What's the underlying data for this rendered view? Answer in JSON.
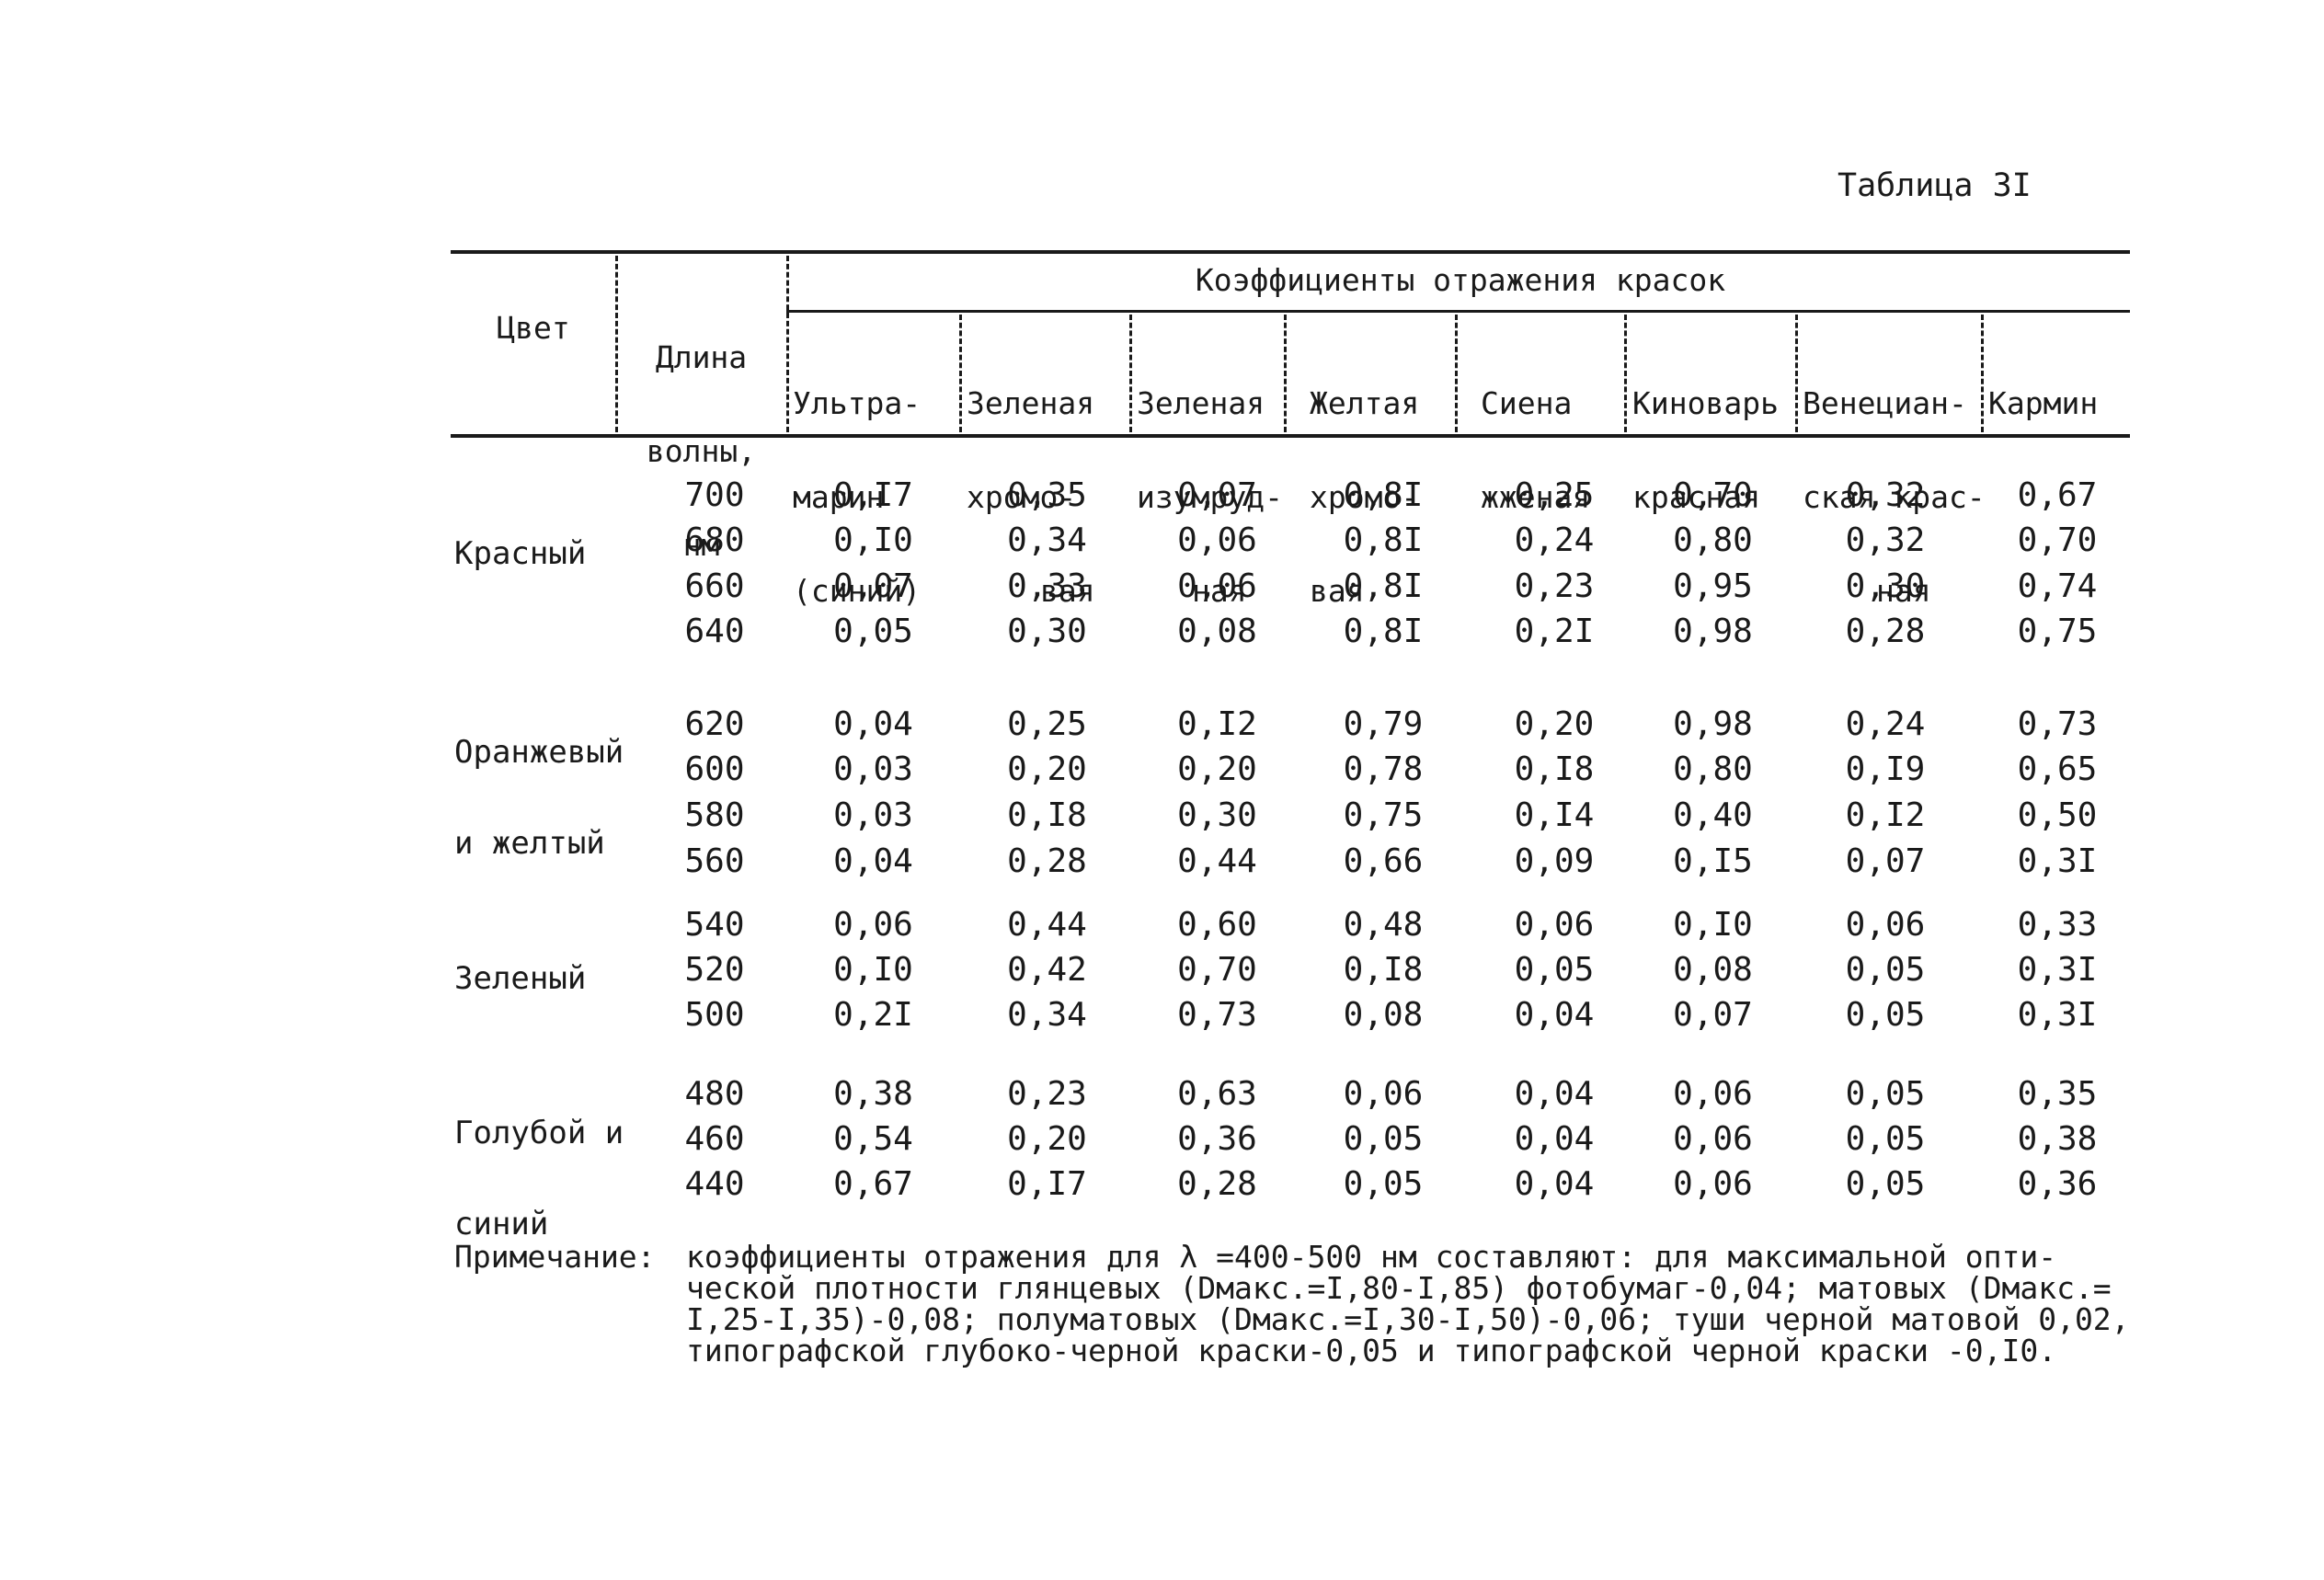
{
  "table_label": "Таблица 3I",
  "header": {
    "color_col": "Цвет",
    "wavelength_col": [
      "Длина",
      "волны,",
      "нм"
    ],
    "group_title": "Коэффициенты отражения красок",
    "paints": [
      [
        "Ультра-",
        "марин",
        "(синий)"
      ],
      [
        "Зеленая",
        "хромо-",
        "вая"
      ],
      [
        "Зеленая",
        "изумруд-",
        "ная"
      ],
      [
        "Желтая",
        "хромо-",
        "вая"
      ],
      [
        "Сиена",
        "жженая",
        ""
      ],
      [
        "Киноварь",
        "красная",
        ""
      ],
      [
        "Венециан-",
        "ская крас-",
        "ная"
      ],
      [
        "Кармин",
        "",
        ""
      ]
    ]
  },
  "groups": [
    {
      "label": [
        "Красный"
      ],
      "rows": [
        {
          "wl": "700",
          "v": [
            "0,I7",
            "0,35",
            "0,07",
            "0,8I",
            "0,25",
            "0,70",
            "0,32",
            "0,67"
          ]
        },
        {
          "wl": "680",
          "v": [
            "0,I0",
            "0,34",
            "0,06",
            "0,8I",
            "0,24",
            "0,80",
            "0,32",
            "0,70"
          ]
        },
        {
          "wl": "660",
          "v": [
            "0,07",
            "0,33",
            "0,06",
            "0,8I",
            "0,23",
            "0,95",
            "0,30",
            "0,74"
          ]
        },
        {
          "wl": "640",
          "v": [
            "0,05",
            "0,30",
            "0,08",
            "0,8I",
            "0,2I",
            "0,98",
            "0,28",
            "0,75"
          ]
        }
      ]
    },
    {
      "label": [
        "Оранжевый",
        "и желтый"
      ],
      "rows": [
        {
          "wl": "620",
          "v": [
            "0,04",
            "0,25",
            "0,I2",
            "0,79",
            "0,20",
            "0,98",
            "0,24",
            "0,73"
          ]
        },
        {
          "wl": "600",
          "v": [
            "0,03",
            "0,20",
            "0,20",
            "0,78",
            "0,I8",
            "0,80",
            "0,I9",
            "0,65"
          ]
        },
        {
          "wl": "580",
          "v": [
            "0,03",
            "0,I8",
            "0,30",
            "0,75",
            "0,I4",
            "0,40",
            "0,I2",
            "0,50"
          ]
        },
        {
          "wl": "560",
          "v": [
            "0,04",
            "0,28",
            "0,44",
            "0,66",
            "0,09",
            "0,I5",
            "0,07",
            "0,3I"
          ]
        }
      ]
    },
    {
      "label": [
        "Зеленый"
      ],
      "rows": [
        {
          "wl": "540",
          "v": [
            "0,06",
            "0,44",
            "0,60",
            "0,48",
            "0,06",
            "0,I0",
            "0,06",
            "0,33"
          ]
        },
        {
          "wl": "520",
          "v": [
            "0,I0",
            "0,42",
            "0,70",
            "0,I8",
            "0,05",
            "0,08",
            "0,05",
            "0,3I"
          ]
        },
        {
          "wl": "500",
          "v": [
            "0,2I",
            "0,34",
            "0,73",
            "0,08",
            "0,04",
            "0,07",
            "0,05",
            "0,3I"
          ]
        }
      ]
    },
    {
      "label": [
        "Голубой и",
        "синий"
      ],
      "rows": [
        {
          "wl": "480",
          "v": [
            "0,38",
            "0,23",
            "0,63",
            "0,06",
            "0,04",
            "0,06",
            "0,05",
            "0,35"
          ]
        },
        {
          "wl": "460",
          "v": [
            "0,54",
            "0,20",
            "0,36",
            "0,05",
            "0,04",
            "0,06",
            "0,05",
            "0,38"
          ]
        },
        {
          "wl": "440",
          "v": [
            "0,67",
            "0,I7",
            "0,28",
            "0,05",
            "0,04",
            "0,06",
            "0,05",
            "0,36"
          ]
        }
      ]
    }
  ],
  "note": {
    "lead": "Примечание:",
    "lines": [
      "коэффициенты отражения для λ =400-500 нм составляют: для максимальной опти-",
      "ческой плотности глянцевых (Dмакс.=I,80-I,85) фотобумаг-0,04; матовых (Dмакс.=",
      "I,25-I,35)-0,08; полуматовых (Dмакс.=I,30-I,50)-0,06; туши черной матовой 0,02,",
      "типографской глубоко-черной краски-0,05 и типографской черной краски -0,I0."
    ]
  }
}
